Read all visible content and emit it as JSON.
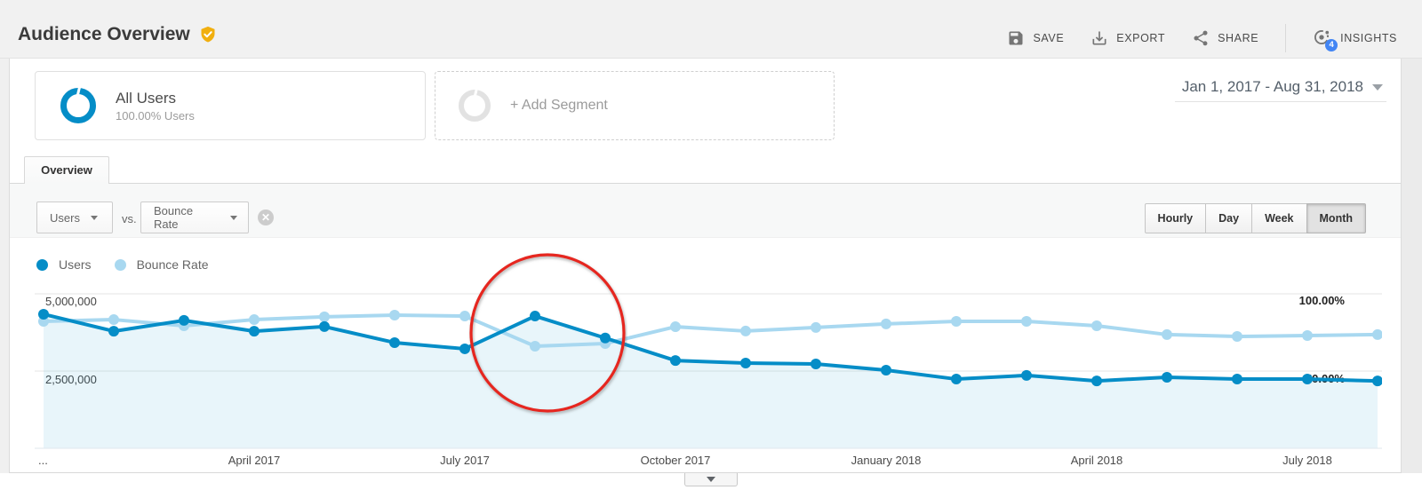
{
  "header": {
    "title": "Audience Overview",
    "actions": {
      "save": "SAVE",
      "export": "EXPORT",
      "share": "SHARE",
      "insights": "INSIGHTS",
      "insights_badge": "4"
    }
  },
  "segments": {
    "all_users_title": "All Users",
    "all_users_subtitle": "100.00% Users",
    "add_segment_label": "+ Add Segment"
  },
  "date_range": "Jan 1, 2017 - Aug 31, 2018",
  "tab": "Overview",
  "controls": {
    "primary_metric": "Users",
    "vs_label": "vs.",
    "secondary_metric": "Bounce Rate",
    "granularity": [
      "Hourly",
      "Day",
      "Week",
      "Month"
    ],
    "granularity_active": "Month"
  },
  "legend": [
    {
      "label": "Users",
      "color": "#058dc7"
    },
    {
      "label": "Bounce Rate",
      "color": "#a8d8f0"
    }
  ],
  "chart_data": {
    "type": "line",
    "x": [
      "Jan 2017",
      "Feb 2017",
      "Mar 2017",
      "Apr 2017",
      "May 2017",
      "Jun 2017",
      "Jul 2017",
      "Aug 2017",
      "Sep 2017",
      "Oct 2017",
      "Nov 2017",
      "Dec 2017",
      "Jan 2018",
      "Feb 2018",
      "Mar 2018",
      "Apr 2018",
      "May 2018",
      "Jun 2018",
      "Jul 2018",
      "Aug 2018"
    ],
    "x_ticks": [
      {
        "index": 0,
        "label": "..."
      },
      {
        "index": 3,
        "label": "April 2017"
      },
      {
        "index": 6,
        "label": "July 2017"
      },
      {
        "index": 9,
        "label": "October 2017"
      },
      {
        "index": 12,
        "label": "January 2018"
      },
      {
        "index": 15,
        "label": "April 2018"
      },
      {
        "index": 18,
        "label": "July 2018"
      }
    ],
    "series": [
      {
        "name": "Users",
        "axis": "left",
        "color": "#058dc7",
        "area_fill": true,
        "values": [
          4340000,
          3790000,
          4140000,
          3790000,
          3940000,
          3420000,
          3220000,
          4280000,
          3570000,
          2840000,
          2760000,
          2730000,
          2530000,
          2240000,
          2360000,
          2180000,
          2300000,
          2240000,
          2240000,
          2180000
        ]
      },
      {
        "name": "Bounce Rate",
        "axis": "right",
        "color": "#a8d8f0",
        "area_fill": false,
        "values": [
          82.2,
          83.3,
          79.3,
          83.3,
          85.1,
          86.2,
          85.6,
          66.1,
          67.8,
          78.7,
          75.9,
          78.2,
          80.5,
          82.2,
          82.2,
          79.3,
          73.6,
          72.4,
          73.0,
          73.6
        ]
      }
    ],
    "left_axis": {
      "labels": [
        "5,000,000",
        "2,500,000"
      ],
      "max": 5000000,
      "mid": 2500000,
      "min": 0
    },
    "right_axis": {
      "labels": [
        "100.00%",
        "50.00%"
      ],
      "max": 100,
      "mid": 50,
      "min": 0
    },
    "grid": "horizontal",
    "legend_position": "top-left",
    "annotation": {
      "type": "circle",
      "color": "#e6261f",
      "around": "Aug 2017"
    }
  },
  "colors": {
    "accent_blue": "#058dc7",
    "light_blue": "#a8d8f0",
    "badge_gold": "#f1af0f",
    "insights_badge_blue": "#4285f4",
    "annotation_red": "#e6261f",
    "area_fill": "#e9f3fa"
  }
}
